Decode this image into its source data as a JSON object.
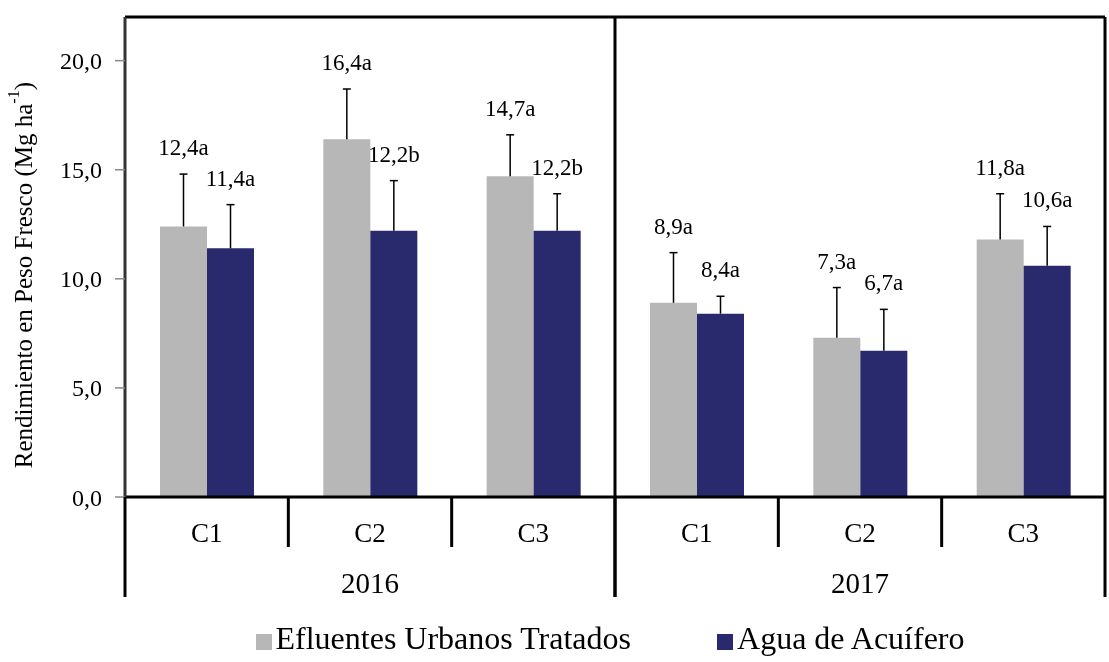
{
  "chart_data": [
    {
      "type": "bar",
      "ylabel": "Rendimiento en Peso Fresco (Mg ha$^{-1}$)",
      "xlabel": "2016",
      "categories": [
        "C1",
        "C2",
        "C3"
      ],
      "series": [
        {
          "name": "Efluentes Urbanos Tratados",
          "color": "#b7b7b7",
          "values": [
            12.4,
            16.4,
            14.7
          ],
          "errors": [
            [
              12.4,
              14.8
            ],
            [
              16.4,
              18.7
            ],
            [
              14.7,
              16.6
            ]
          ],
          "value_labels": [
            "12,4a",
            "16,4a",
            "14,7a"
          ]
        },
        {
          "name": "Agua de Acuífero",
          "color": "#29296e",
          "values": [
            11.4,
            12.2,
            12.2
          ],
          "errors": [
            [
              11.4,
              13.4
            ],
            [
              12.2,
              14.5
            ],
            [
              12.2,
              13.9
            ]
          ],
          "value_labels": [
            "11,4a",
            "12,2b",
            "12,2b"
          ]
        }
      ],
      "ylim": [
        0,
        22
      ],
      "yticks": [
        {
          "value": 0,
          "label": "0,0"
        },
        {
          "value": 5,
          "label": "5,0"
        },
        {
          "value": 10,
          "label": "10,0"
        },
        {
          "value": 15,
          "label": "15,0"
        },
        {
          "value": 20,
          "label": "20,0"
        }
      ],
      "legend": "bottom"
    },
    {
      "type": "bar",
      "xlabel": "2017",
      "categories": [
        "C1",
        "C2",
        "C3"
      ],
      "series": [
        {
          "color": "#b7b7b7",
          "values": [
            8.9,
            7.3,
            11.8
          ],
          "errors": [
            [
              8.9,
              11.2
            ],
            [
              7.3,
              9.6
            ],
            [
              11.8,
              13.9
            ]
          ],
          "value_labels": [
            "8,9a",
            "7,3a",
            "11,8a"
          ]
        },
        {
          "color": "#29296e",
          "values": [
            8.4,
            6.7,
            10.6
          ],
          "errors": [
            [
              8.4,
              9.2
            ],
            [
              6.7,
              8.6
            ],
            [
              10.6,
              12.4
            ]
          ],
          "value_labels": [
            "8,4a",
            "6,7a",
            "10,6a"
          ]
        }
      ],
      "ylim": [
        0,
        22
      ],
      "tick_labels": "x"
    }
  ]
}
